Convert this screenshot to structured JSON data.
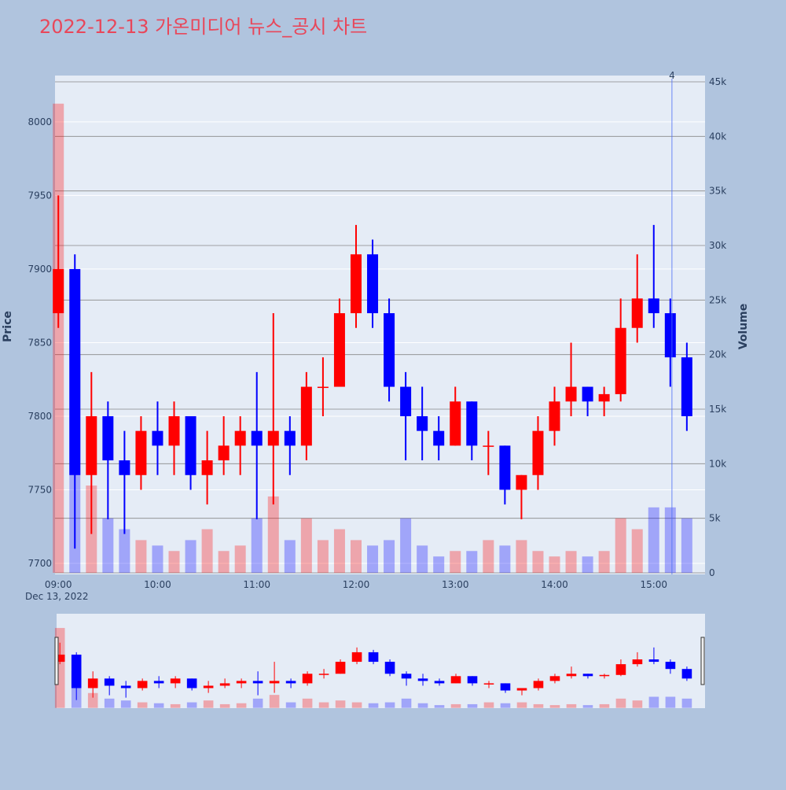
{
  "chart_data": {
    "type": "candlestick",
    "title": "2022-12-13 가온미디어 뉴스_공시 차트",
    "y_label": "Price",
    "y2_label": "Volume",
    "x_date_label": "Dec 13, 2022",
    "x": [
      "09:00",
      "09:10",
      "09:20",
      "09:30",
      "09:40",
      "09:50",
      "10:00",
      "10:10",
      "10:20",
      "10:30",
      "10:40",
      "10:50",
      "11:00",
      "11:10",
      "11:20",
      "11:30",
      "11:40",
      "11:50",
      "12:00",
      "12:10",
      "12:20",
      "12:30",
      "12:40",
      "12:50",
      "13:00",
      "13:10",
      "13:20",
      "13:30",
      "13:40",
      "13:50",
      "14:00",
      "14:10",
      "14:20",
      "14:30",
      "14:40",
      "14:50",
      "15:00",
      "15:10",
      "15:20"
    ],
    "open": [
      7870,
      7900,
      7760,
      7800,
      7770,
      7760,
      7790,
      7780,
      7800,
      7760,
      7770,
      7780,
      7790,
      7780,
      7790,
      7780,
      7820,
      7820,
      7870,
      7910,
      7870,
      7820,
      7800,
      7790,
      7780,
      7810,
      7780,
      7780,
      7750,
      7760,
      7790,
      7810,
      7820,
      7810,
      7815,
      7860,
      7880,
      7870,
      7840
    ],
    "high": [
      7950,
      7910,
      7830,
      7810,
      7790,
      7800,
      7810,
      7810,
      7800,
      7790,
      7800,
      7800,
      7830,
      7870,
      7800,
      7830,
      7840,
      7880,
      7930,
      7920,
      7880,
      7830,
      7820,
      7800,
      7820,
      7810,
      7790,
      7780,
      7760,
      7800,
      7820,
      7850,
      7820,
      7820,
      7880,
      7910,
      7930,
      7880,
      7850
    ],
    "low": [
      7860,
      7710,
      7720,
      7730,
      7720,
      7750,
      7760,
      7760,
      7750,
      7740,
      7760,
      7760,
      7730,
      7740,
      7760,
      7770,
      7800,
      7820,
      7860,
      7860,
      7810,
      7770,
      7770,
      7770,
      7780,
      7770,
      7760,
      7740,
      7730,
      7750,
      7780,
      7800,
      7800,
      7800,
      7810,
      7850,
      7860,
      7820,
      7790
    ],
    "close": [
      7900,
      7760,
      7800,
      7770,
      7760,
      7790,
      7780,
      7800,
      7760,
      7770,
      7780,
      7790,
      7780,
      7790,
      7780,
      7820,
      7820,
      7870,
      7910,
      7870,
      7820,
      7800,
      7790,
      7780,
      7810,
      7780,
      7780,
      7750,
      7760,
      7790,
      7810,
      7820,
      7810,
      7815,
      7860,
      7880,
      7870,
      7840,
      7800
    ],
    "volume": [
      43000,
      20000,
      8000,
      5000,
      4000,
      3000,
      2500,
      2000,
      3000,
      4000,
      2000,
      2500,
      5000,
      7000,
      3000,
      5000,
      3000,
      4000,
      3000,
      2500,
      3000,
      5000,
      2500,
      1500,
      2000,
      2000,
      3000,
      2500,
      3000,
      2000,
      1500,
      2000,
      1500,
      2000,
      5000,
      4000,
      6000,
      6000,
      5000
    ],
    "increasing_color": "#ff0000",
    "decreasing_color": "#0000ff",
    "xlim": [
      "08:58",
      "15:31"
    ],
    "xticks": [
      "09:00",
      "10:00",
      "11:00",
      "12:00",
      "13:00",
      "14:00",
      "15:00"
    ],
    "ylim": [
      7692.5,
      8031.5
    ],
    "yticks": [
      7700,
      7750,
      7800,
      7850,
      7900,
      7950,
      8000
    ],
    "y2lim": [
      -144,
      45577
    ],
    "y2ticks": [
      0,
      {
        "value": 5000,
        "label": "5k"
      },
      {
        "value": 10000,
        "label": "10k"
      },
      {
        "value": 15000,
        "label": "15k"
      },
      {
        "value": 20000,
        "label": "20k"
      },
      {
        "value": 25000,
        "label": "25k"
      },
      {
        "value": 30000,
        "label": "30k"
      },
      {
        "value": 35000,
        "label": "35k"
      },
      {
        "value": 40000,
        "label": "40k"
      },
      {
        "value": 45000,
        "label": "45k"
      }
    ],
    "annotations": [
      {
        "text": "4",
        "x": "15:11"
      }
    ],
    "grid": true,
    "rangeslider": true
  }
}
